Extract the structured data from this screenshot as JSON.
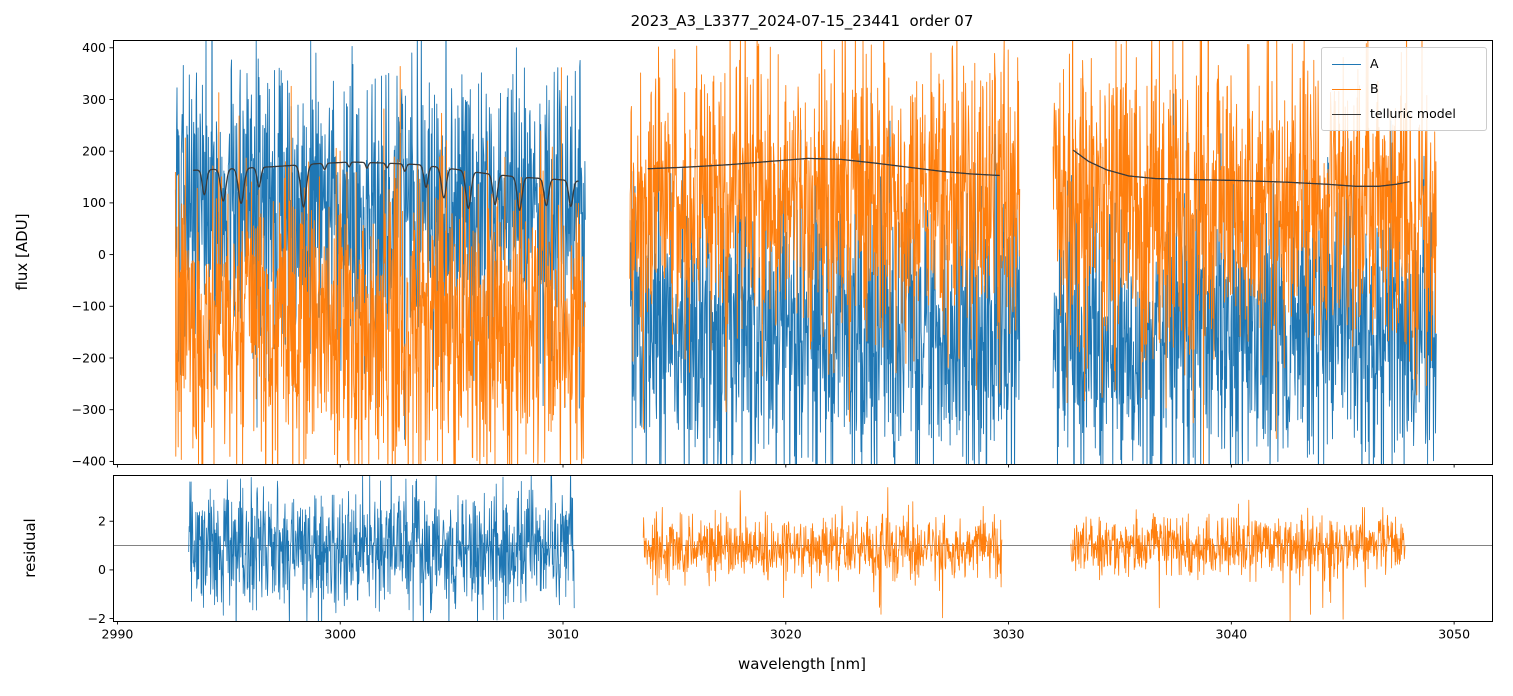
{
  "chart_data": {
    "type": "line",
    "title": "2023_A3_L3377_2024-07-15_23441  order 07",
    "xlabel": "wavelength [nm]",
    "xlim": [
      2989.8,
      3051.7
    ],
    "xticks": [
      2990,
      3000,
      3010,
      3020,
      3030,
      3040,
      3050
    ],
    "background": "#ffffff",
    "axis_color": "#000000",
    "legend": {
      "position": "upper right",
      "entries": [
        {
          "label": "A",
          "color": "#1f77b4"
        },
        {
          "label": "B",
          "color": "#ff7f0e"
        },
        {
          "label": "telluric model",
          "color": "#3a3a3a"
        }
      ]
    },
    "panels": [
      {
        "name": "flux",
        "ylabel": "flux [ADU]",
        "ylim": [
          -405,
          415
        ],
        "yticks": [
          -400,
          -300,
          -200,
          -100,
          0,
          100,
          200,
          300,
          400
        ],
        "grid": false
      },
      {
        "name": "residual",
        "ylabel": "residual",
        "ylim": [
          -2.1,
          3.9
        ],
        "yticks": [
          -2,
          0,
          2
        ],
        "grid": false,
        "hline": 1.0,
        "hline_color": "#595959"
      }
    ],
    "flux_noise_points_per_nm": 56,
    "segments": [
      {
        "x_range": [
          2992.6,
          3011.0
        ],
        "flux_series": [
          {
            "name": "A",
            "color": "#1f77b4",
            "mean": 98,
            "noise_std": 148,
            "seed": 101
          },
          {
            "name": "B",
            "color": "#ff7f0e",
            "mean": -132,
            "noise_std": 148,
            "seed": 202
          }
        ],
        "telluric_baseline": [
          [
            2993.4,
            163
          ],
          [
            2995.0,
            166
          ],
          [
            2997.0,
            170
          ],
          [
            2999.0,
            176
          ],
          [
            3000.5,
            179
          ],
          [
            3002.0,
            177
          ],
          [
            3003.5,
            174
          ],
          [
            3005.0,
            166
          ],
          [
            3006.5,
            157
          ],
          [
            3008.0,
            150
          ],
          [
            3009.5,
            146
          ],
          [
            3010.7,
            142
          ]
        ],
        "telluric_lines": [
          {
            "center": 2993.9,
            "depth": 48,
            "width": 0.13
          },
          {
            "center": 2994.75,
            "depth": 62,
            "width": 0.16
          },
          {
            "center": 2995.55,
            "depth": 68,
            "width": 0.17
          },
          {
            "center": 2996.35,
            "depth": 38,
            "width": 0.12
          },
          {
            "center": 2998.35,
            "depth": 82,
            "width": 0.17
          },
          {
            "center": 2999.3,
            "depth": 12,
            "width": 0.09
          },
          {
            "center": 3000.4,
            "depth": 9,
            "width": 0.08
          },
          {
            "center": 3001.2,
            "depth": 11,
            "width": 0.08
          },
          {
            "center": 3002.1,
            "depth": 9,
            "width": 0.08
          },
          {
            "center": 3002.9,
            "depth": 14,
            "width": 0.09
          },
          {
            "center": 3003.85,
            "depth": 42,
            "width": 0.13
          },
          {
            "center": 3004.65,
            "depth": 58,
            "width": 0.15
          },
          {
            "center": 3005.75,
            "depth": 72,
            "width": 0.16
          },
          {
            "center": 3006.95,
            "depth": 58,
            "width": 0.14
          },
          {
            "center": 3008.05,
            "depth": 64,
            "width": 0.15
          },
          {
            "center": 3009.25,
            "depth": 52,
            "width": 0.14
          },
          {
            "center": 3010.35,
            "depth": 50,
            "width": 0.13
          }
        ],
        "residual": {
          "series": "A",
          "color": "#1f77b4",
          "x_range": [
            2993.2,
            3010.5
          ],
          "mean": 0.9,
          "noise_std": 1.3,
          "seed": 301,
          "spike_prob": 0
        }
      },
      {
        "x_range": [
          3013.0,
          3030.5
        ],
        "flux_series": [
          {
            "name": "A",
            "color": "#1f77b4",
            "mean": -155,
            "noise_std": 148,
            "seed": 103
          },
          {
            "name": "B",
            "color": "#ff7f0e",
            "mean": 100,
            "noise_std": 150,
            "seed": 204
          }
        ],
        "telluric_baseline": [
          [
            3013.8,
            166
          ],
          [
            3015.5,
            169
          ],
          [
            3017.5,
            174
          ],
          [
            3019.5,
            181
          ],
          [
            3021.0,
            186
          ],
          [
            3022.5,
            184
          ],
          [
            3024.0,
            177
          ],
          [
            3025.5,
            169
          ],
          [
            3027.0,
            161
          ],
          [
            3028.3,
            156
          ],
          [
            3029.6,
            153
          ]
        ],
        "telluric_lines": [],
        "residual": {
          "series": "B",
          "color": "#ff7f0e",
          "x_range": [
            3013.6,
            3029.7
          ],
          "mean": 0.95,
          "noise_std": 0.62,
          "seed": 302,
          "spike_prob": 0.006
        }
      },
      {
        "x_range": [
          3032.0,
          3049.2
        ],
        "flux_series": [
          {
            "name": "A",
            "color": "#1f77b4",
            "mean": -148,
            "noise_std": 148,
            "seed": 105
          },
          {
            "name": "B",
            "color": "#ff7f0e",
            "mean": 95,
            "noise_std": 150,
            "seed": 206
          }
        ],
        "telluric_baseline": [
          [
            3032.9,
            202
          ],
          [
            3033.6,
            180
          ],
          [
            3034.4,
            164
          ],
          [
            3035.4,
            152
          ],
          [
            3036.6,
            147
          ],
          [
            3038.5,
            145
          ],
          [
            3040.5,
            143
          ],
          [
            3042.5,
            140
          ],
          [
            3044.3,
            136
          ],
          [
            3045.6,
            132
          ],
          [
            3046.6,
            132
          ],
          [
            3047.4,
            136
          ],
          [
            3048.0,
            141
          ]
        ],
        "telluric_lines": [],
        "residual": {
          "series": "B",
          "color": "#ff7f0e",
          "x_range": [
            3032.8,
            3047.8
          ],
          "mean": 1.0,
          "noise_std": 0.62,
          "seed": 303,
          "spike_prob": 0.006
        }
      }
    ]
  }
}
